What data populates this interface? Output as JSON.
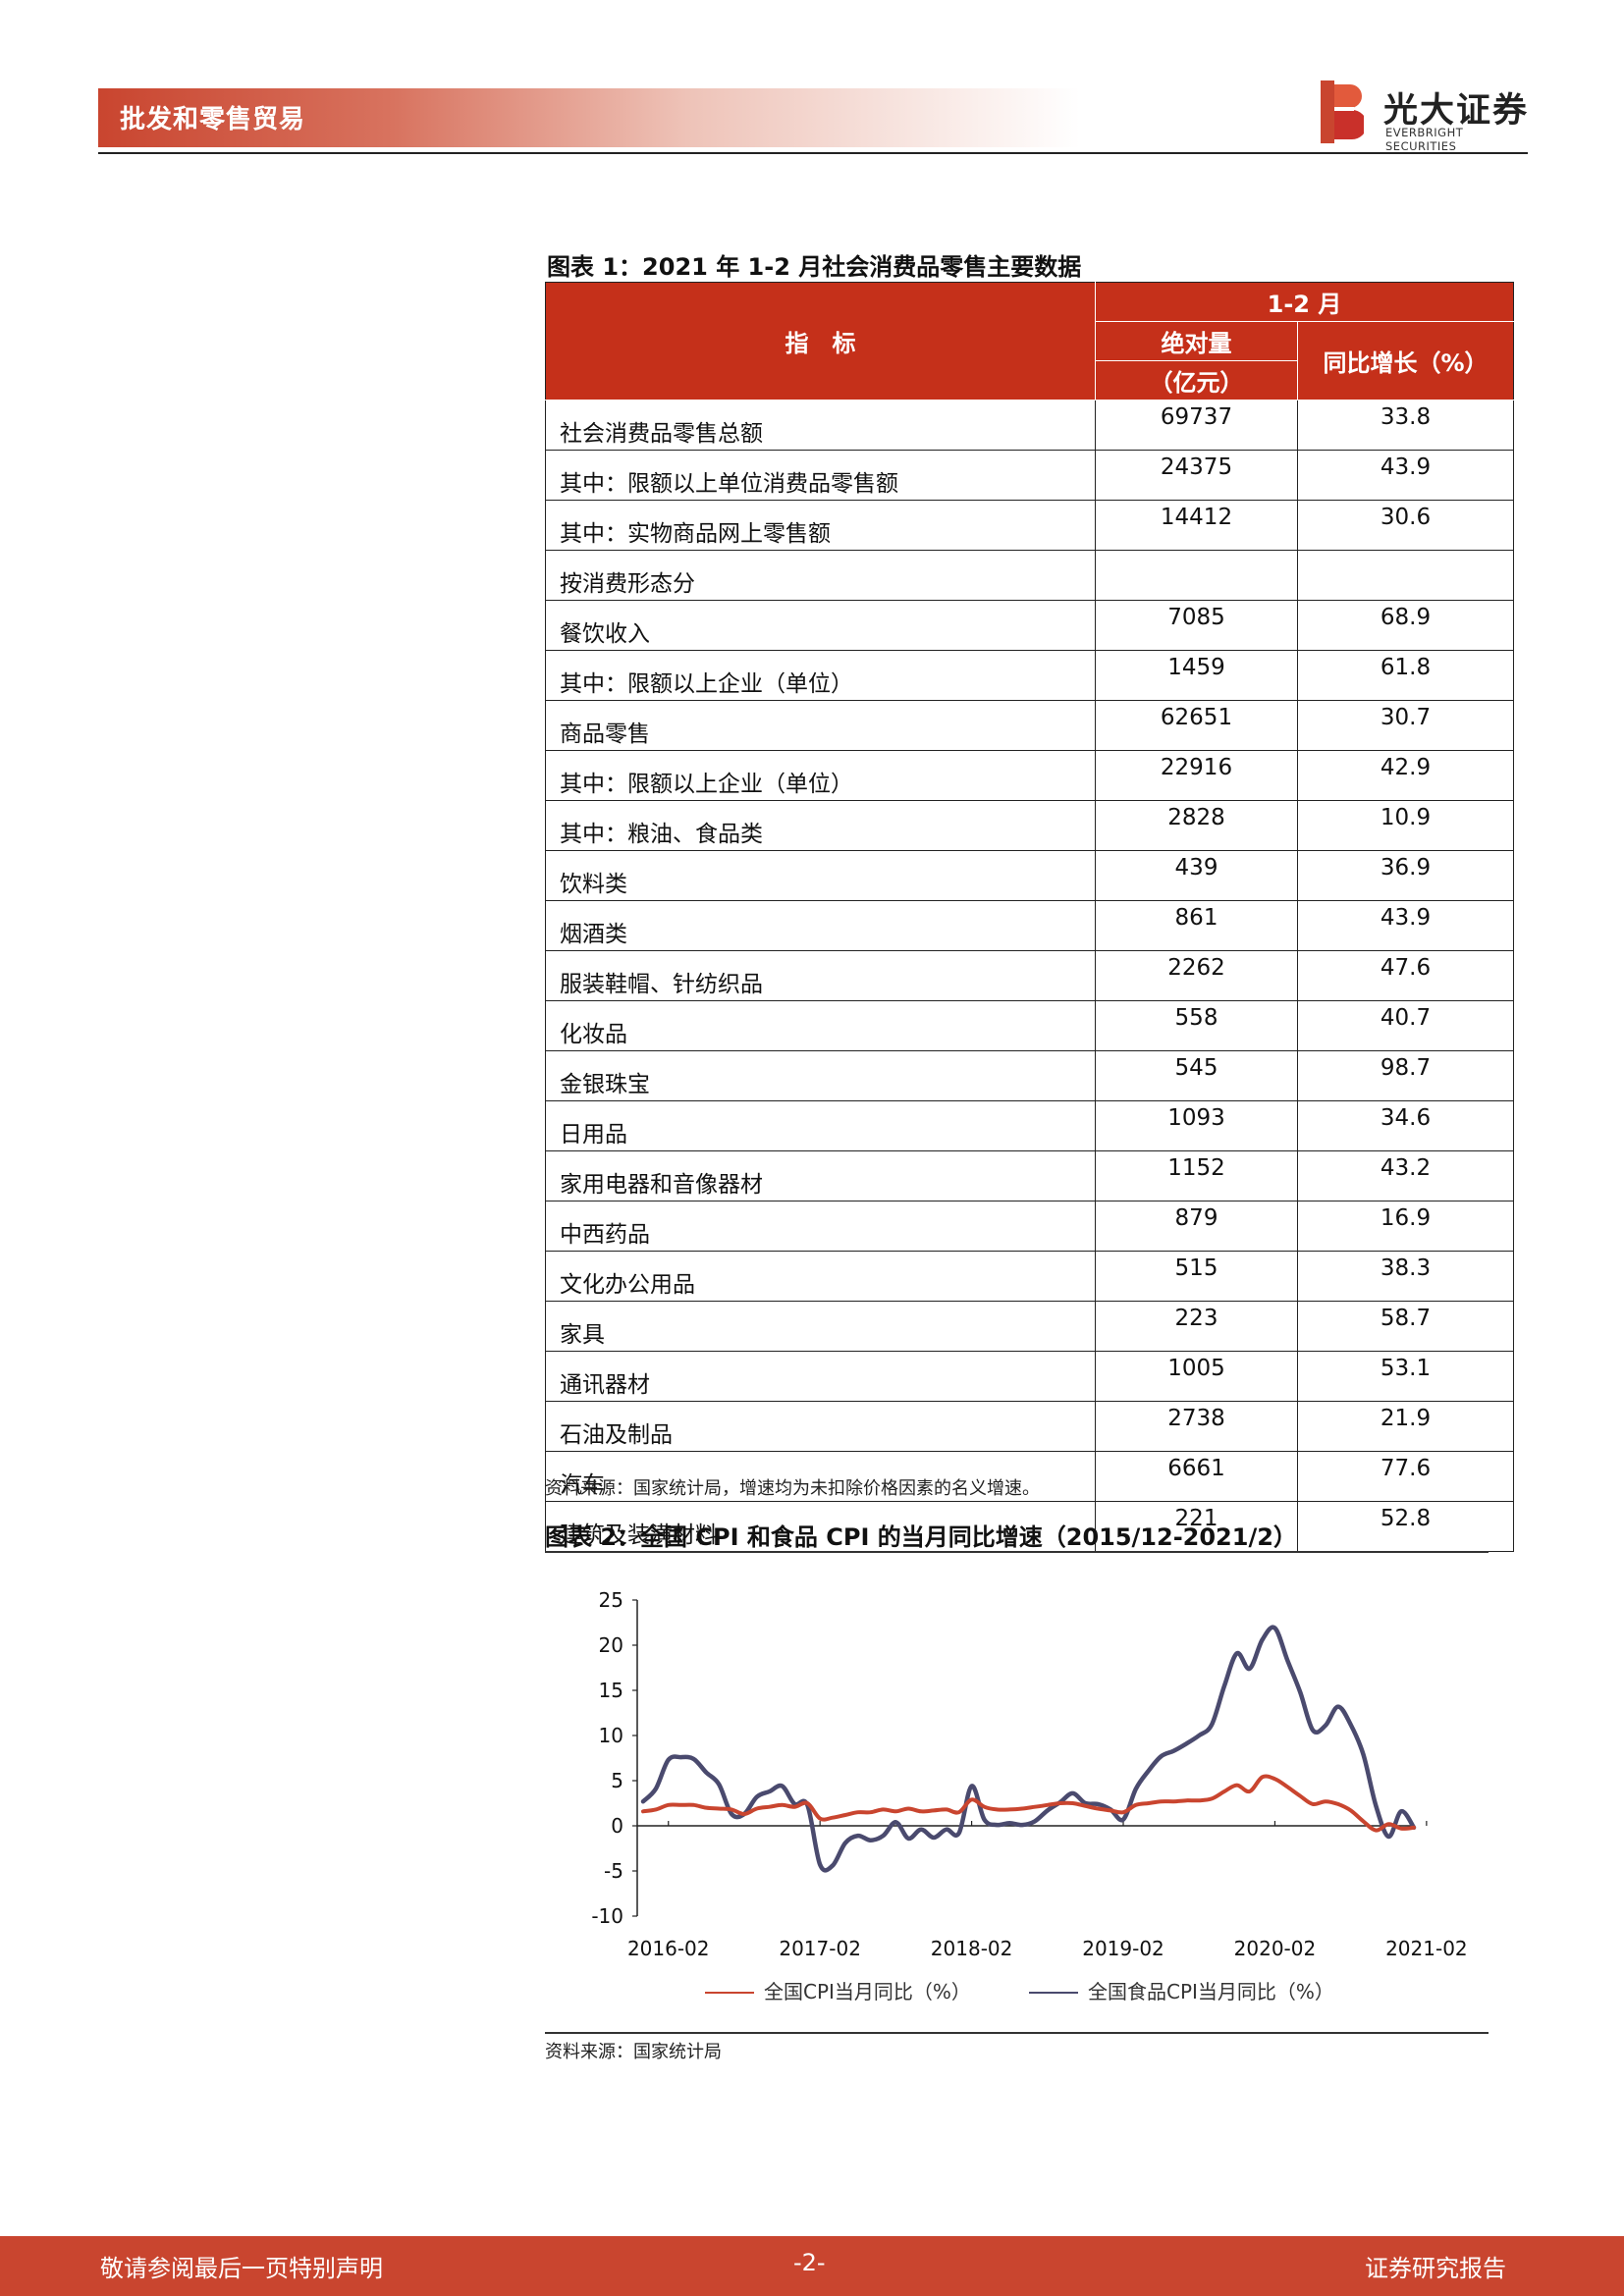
{
  "header": {
    "section": "批发和零售贸易",
    "brand_cn": "光大证券",
    "brand_en": "EVERBRIGHT SECURITIES",
    "brand_color": "#c9452f"
  },
  "figure1": {
    "title": "图表 1：2021 年 1-2 月社会消费品零售主要数据",
    "header": {
      "indicator": "指　标",
      "period": "1-2 月",
      "absolute": "绝对量",
      "absolute_unit": "（亿元）",
      "yoy": "同比增长（%）"
    },
    "rows": [
      {
        "name": "社会消费品零售总额",
        "level": 0,
        "abs": "69737",
        "yoy": "33.8"
      },
      {
        "name": "其中：限额以上单位消费品零售额",
        "level": 0,
        "abs": "24375",
        "yoy": "43.9"
      },
      {
        "name": "其中：实物商品网上零售额",
        "level": 0,
        "abs": "14412",
        "yoy": "30.6"
      },
      {
        "name": "按消费形态分",
        "level": 0,
        "abs": "",
        "yoy": ""
      },
      {
        "name": "餐饮收入",
        "level": 1,
        "abs": "7085",
        "yoy": "68.9"
      },
      {
        "name": "其中：限额以上企业（单位）",
        "level": 2,
        "abs": "1459",
        "yoy": "61.8"
      },
      {
        "name": "商品零售",
        "level": 1,
        "abs": "62651",
        "yoy": "30.7"
      },
      {
        "name": "其中：限额以上企业（单位）",
        "level": 2,
        "abs": "22916",
        "yoy": "42.9"
      },
      {
        "name": "其中：粮油、食品类",
        "level": 3,
        "abs": "2828",
        "yoy": "10.9"
      },
      {
        "name": "饮料类",
        "level": 4,
        "abs": "439",
        "yoy": "36.9"
      },
      {
        "name": "烟酒类",
        "level": 4,
        "abs": "861",
        "yoy": "43.9"
      },
      {
        "name": "服装鞋帽、针纺织品",
        "level": 4,
        "abs": "2262",
        "yoy": "47.6"
      },
      {
        "name": "化妆品",
        "level": 4,
        "abs": "558",
        "yoy": "40.7"
      },
      {
        "name": "金银珠宝",
        "level": 4,
        "abs": "545",
        "yoy": "98.7"
      },
      {
        "name": "日用品",
        "level": 4,
        "abs": "1093",
        "yoy": "34.6"
      },
      {
        "name": "家用电器和音像器材",
        "level": 4,
        "abs": "1152",
        "yoy": "43.2"
      },
      {
        "name": "中西药品",
        "level": 4,
        "abs": "879",
        "yoy": "16.9"
      },
      {
        "name": "文化办公用品",
        "level": 4,
        "abs": "515",
        "yoy": "38.3"
      },
      {
        "name": "家具",
        "level": 4,
        "abs": "223",
        "yoy": "58.7"
      },
      {
        "name": "通讯器材",
        "level": 4,
        "abs": "1005",
        "yoy": "53.1"
      },
      {
        "name": "石油及制品",
        "level": 4,
        "abs": "2738",
        "yoy": "21.9"
      },
      {
        "name": "汽车",
        "level": 4,
        "abs": "6661",
        "yoy": "77.6"
      },
      {
        "name": "建筑及装潢材料",
        "level": 4,
        "abs": "221",
        "yoy": "52.8"
      }
    ],
    "source": "资料来源：国家统计局，增速均为未扣除价格因素的名义增速。"
  },
  "figure2": {
    "title": "图表 2：全国 CPI 和食品 CPI 的当月同比增速（2015/12-2021/2）",
    "source": "资料来源：国家统计局"
  },
  "chart_data": {
    "type": "line",
    "x_start": "2015-12",
    "x_end": "2021-02",
    "xticks": [
      "2016-02",
      "2017-02",
      "2018-02",
      "2019-02",
      "2020-02",
      "2021-02"
    ],
    "yticks": [
      -10,
      -5,
      0,
      5,
      10,
      15,
      20,
      25
    ],
    "ylim": [
      -10,
      25
    ],
    "legend_position": "bottom",
    "grid": false,
    "series": [
      {
        "name": "全国CPI当月同比（%）",
        "color": "#c9452f",
        "values": [
          1.6,
          1.8,
          2.3,
          2.3,
          2.3,
          2.0,
          1.9,
          1.8,
          1.3,
          1.9,
          2.1,
          2.3,
          2.1,
          2.5,
          0.8,
          0.9,
          1.2,
          1.5,
          1.5,
          1.8,
          1.6,
          1.9,
          1.6,
          1.7,
          1.8,
          1.5,
          2.9,
          2.1,
          1.8,
          1.8,
          1.9,
          2.1,
          2.3,
          2.5,
          2.5,
          2.2,
          1.9,
          1.7,
          1.5,
          2.3,
          2.5,
          2.7,
          2.7,
          2.8,
          2.8,
          3.0,
          3.8,
          4.5,
          3.8,
          5.4,
          5.2,
          4.3,
          3.3,
          2.4,
          2.7,
          2.4,
          1.7,
          0.5,
          -0.5,
          0.2,
          -0.3,
          -0.2
        ],
        "line_width": "thick"
      },
      {
        "name": "全国食品CPI当月同比（%）",
        "color": "#4a4a6e",
        "values": [
          2.7,
          4.1,
          7.3,
          7.6,
          7.4,
          5.9,
          4.6,
          1.3,
          1.3,
          3.2,
          3.8,
          4.4,
          2.4,
          2.3,
          -4.3,
          -4.4,
          -1.9,
          -1.1,
          -1.6,
          -1.1,
          0.4,
          -1.4,
          -0.4,
          -1.3,
          -0.4,
          -0.8,
          4.4,
          0.7,
          0.1,
          0.3,
          0.1,
          0.5,
          1.7,
          2.6,
          3.6,
          2.5,
          2.4,
          1.8,
          0.7,
          4.1,
          6.1,
          7.7,
          8.3,
          9.1,
          10.0,
          11.2,
          15.5,
          19.1,
          17.4,
          20.6,
          21.9,
          18.3,
          14.8,
          10.6,
          11.1,
          13.2,
          11.2,
          7.9,
          2.2,
          -1.2,
          1.6,
          -0.2
        ],
        "line_width": "thick"
      }
    ]
  },
  "footer": {
    "left": "敬请参阅最后一页特别声明",
    "page": "-2-",
    "right": "证券研究报告"
  }
}
